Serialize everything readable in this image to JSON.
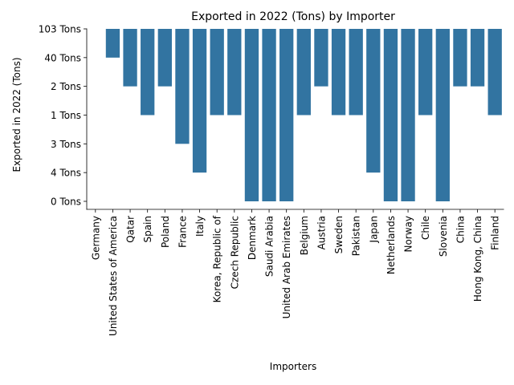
{
  "chart_data": {
    "type": "bar",
    "title": "Exported in 2022 (Tons) by Importer",
    "xlabel": "Importers",
    "ylabel": "Exported in 2022 (Tons)",
    "y_categories": [
      "103 Tons",
      "40 Tons",
      "2 Tons",
      "1 Tons",
      "3 Tons",
      "4 Tons",
      "0 Tons"
    ],
    "categories": [
      "Germany",
      "United States of America",
      "Qatar",
      "Spain",
      "Poland",
      "France",
      "Italy",
      "Korea, Republic of",
      "Czech Republic",
      "Denmark",
      "Saudi Arabia",
      "United Arab Emirates",
      "Belgium",
      "Austria",
      "Sweden",
      "Pakistan",
      "Japan",
      "Netherlands",
      "Norway",
      "Chile",
      "Slovenia",
      "China",
      "Hong Kong, China",
      "Finland"
    ],
    "values": [
      "103 Tons",
      "40 Tons",
      "2 Tons",
      "1 Tons",
      "2 Tons",
      "3 Tons",
      "4 Tons",
      "1 Tons",
      "1 Tons",
      "0 Tons",
      "0 Tons",
      "0 Tons",
      "1 Tons",
      "2 Tons",
      "1 Tons",
      "1 Tons",
      "4 Tons",
      "0 Tons",
      "0 Tons",
      "1 Tons",
      "0 Tons",
      "2 Tons",
      "2 Tons",
      "1 Tons"
    ],
    "grid": false,
    "legend": "none",
    "colors": {
      "bar": "#3274a1",
      "axis": "#000000"
    }
  }
}
